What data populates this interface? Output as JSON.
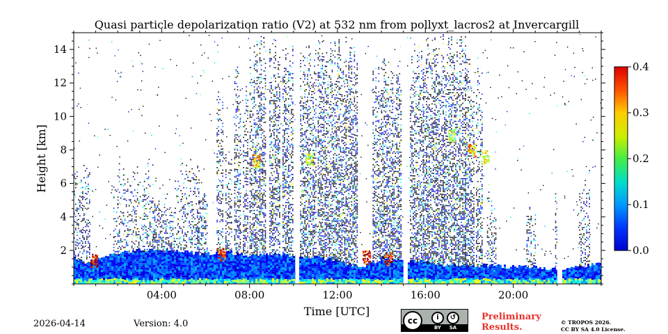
{
  "chart_data": {
    "type": "heatmap",
    "title": "Quasi particle depolarization ratio (V2) at 532 nm from pollyxt_lacros2 at Invercargill",
    "xlabel": "Time [UTC]",
    "ylabel": "Height [km]",
    "xlim": [
      0,
      24
    ],
    "ylim": [
      0,
      15
    ],
    "x_ticks": [
      4,
      8,
      12,
      16,
      20
    ],
    "x_tick_labels": [
      "04:00",
      "08:00",
      "12:00",
      "16:00",
      "20:00"
    ],
    "y_ticks": [
      2,
      4,
      6,
      8,
      10,
      12,
      14
    ],
    "y_tick_labels": [
      "2",
      "4",
      "6",
      "8",
      "10",
      "12",
      "14"
    ],
    "colorbar": {
      "range": [
        0.0,
        0.4
      ],
      "ticks": [
        0.0,
        0.1,
        0.2,
        0.3,
        0.4
      ],
      "tick_labels": [
        "0.0",
        "0.1",
        "0.2",
        "0.3",
        "0.4"
      ],
      "colormap": "jet"
    },
    "data_gaps_hours": [
      [
        10.08,
        10.22
      ],
      [
        15.0,
        15.12
      ],
      [
        22.0,
        22.15
      ]
    ],
    "boundary_layer_top_km": [
      [
        0.0,
        1.6
      ],
      [
        0.5,
        1.2
      ],
      [
        1.0,
        1.6
      ],
      [
        2.0,
        1.8
      ],
      [
        3.0,
        2.0
      ],
      [
        4.0,
        2.0
      ],
      [
        5.0,
        1.9
      ],
      [
        6.0,
        1.8
      ],
      [
        7.0,
        1.9
      ],
      [
        8.0,
        1.7
      ],
      [
        9.0,
        1.8
      ],
      [
        10.0,
        1.7
      ],
      [
        11.0,
        1.6
      ],
      [
        12.0,
        1.4
      ],
      [
        13.0,
        1.0
      ],
      [
        14.0,
        1.5
      ],
      [
        15.0,
        1.4
      ],
      [
        16.0,
        1.3
      ],
      [
        17.0,
        1.1
      ],
      [
        18.0,
        1.1
      ],
      [
        19.0,
        1.1
      ],
      [
        20.0,
        1.0
      ],
      [
        21.0,
        1.0
      ],
      [
        22.0,
        0.9
      ],
      [
        23.0,
        1.0
      ],
      [
        24.0,
        1.3
      ]
    ],
    "cloud_columns": [
      {
        "start": 0.0,
        "end": 0.7,
        "top_km": 7.5,
        "density": 0.35
      },
      {
        "start": 1.8,
        "end": 3.6,
        "top_km": 7.3,
        "density": 0.3
      },
      {
        "start": 3.6,
        "end": 4.6,
        "top_km": 5.5,
        "density": 0.45
      },
      {
        "start": 4.6,
        "end": 5.7,
        "top_km": 8.0,
        "density": 0.3
      },
      {
        "start": 5.6,
        "end": 6.1,
        "top_km": 5.8,
        "density": 0.5
      },
      {
        "start": 6.5,
        "end": 6.8,
        "top_km": 12.5,
        "density": 0.45
      },
      {
        "start": 6.9,
        "end": 7.2,
        "top_km": 8.0,
        "density": 0.5
      },
      {
        "start": 7.3,
        "end": 7.6,
        "top_km": 14.0,
        "density": 0.5
      },
      {
        "start": 7.7,
        "end": 7.9,
        "top_km": 12.0,
        "density": 0.5
      },
      {
        "start": 8.0,
        "end": 8.7,
        "top_km": 15.0,
        "density": 0.6
      },
      {
        "start": 8.9,
        "end": 9.4,
        "top_km": 15.0,
        "density": 0.55
      },
      {
        "start": 9.5,
        "end": 10.0,
        "top_km": 15.0,
        "density": 0.55
      },
      {
        "start": 10.3,
        "end": 11.0,
        "top_km": 14.5,
        "density": 0.55
      },
      {
        "start": 11.1,
        "end": 12.9,
        "top_km": 15.0,
        "density": 0.6
      },
      {
        "start": 13.6,
        "end": 14.9,
        "top_km": 14.0,
        "density": 0.6
      },
      {
        "start": 15.3,
        "end": 15.9,
        "top_km": 14.5,
        "density": 0.55
      },
      {
        "start": 15.9,
        "end": 17.8,
        "top_km": 15.0,
        "density": 0.6
      },
      {
        "start": 17.8,
        "end": 18.2,
        "top_km": 14.5,
        "density": 0.55
      },
      {
        "start": 18.3,
        "end": 18.6,
        "top_km": 14.0,
        "density": 0.5
      },
      {
        "start": 18.8,
        "end": 19.2,
        "top_km": 6.0,
        "density": 0.35
      },
      {
        "start": 20.6,
        "end": 21.0,
        "top_km": 5.0,
        "density": 0.35
      },
      {
        "start": 21.9,
        "end": 22.1,
        "top_km": 6.0,
        "density": 0.35
      },
      {
        "start": 23.0,
        "end": 23.5,
        "top_km": 7.0,
        "density": 0.35
      }
    ],
    "depolarizing_layers": [
      {
        "time": 8.3,
        "height_km": 7.4,
        "value": 0.28
      },
      {
        "time": 10.7,
        "height_km": 7.5,
        "value": 0.25
      },
      {
        "time": 17.2,
        "height_km": 8.9,
        "value": 0.22
      },
      {
        "time": 18.1,
        "height_km": 8.0,
        "value": 0.28
      },
      {
        "time": 18.7,
        "height_km": 7.6,
        "value": 0.25
      },
      {
        "time": 0.9,
        "height_km": 1.4,
        "value": 0.38
      },
      {
        "time": 6.7,
        "height_km": 1.8,
        "value": 0.35
      },
      {
        "time": 13.3,
        "height_km": 1.6,
        "value": 0.38
      },
      {
        "time": 14.3,
        "height_km": 1.5,
        "value": 0.35
      }
    ]
  },
  "footer": {
    "date": "2026-04-14",
    "version": "Version: 4.0",
    "preliminary_line1": "Preliminary",
    "preliminary_line2": "Results.",
    "copyright_line1": "© TROPOS 2026.",
    "copyright_line2": "CC BY SA 4.0 License."
  },
  "license_badge": {
    "cc": "cc",
    "by_label": "BY",
    "sa_label": "SA"
  },
  "colors": {
    "background": "#ffffff",
    "preliminary": "#e8322b"
  }
}
